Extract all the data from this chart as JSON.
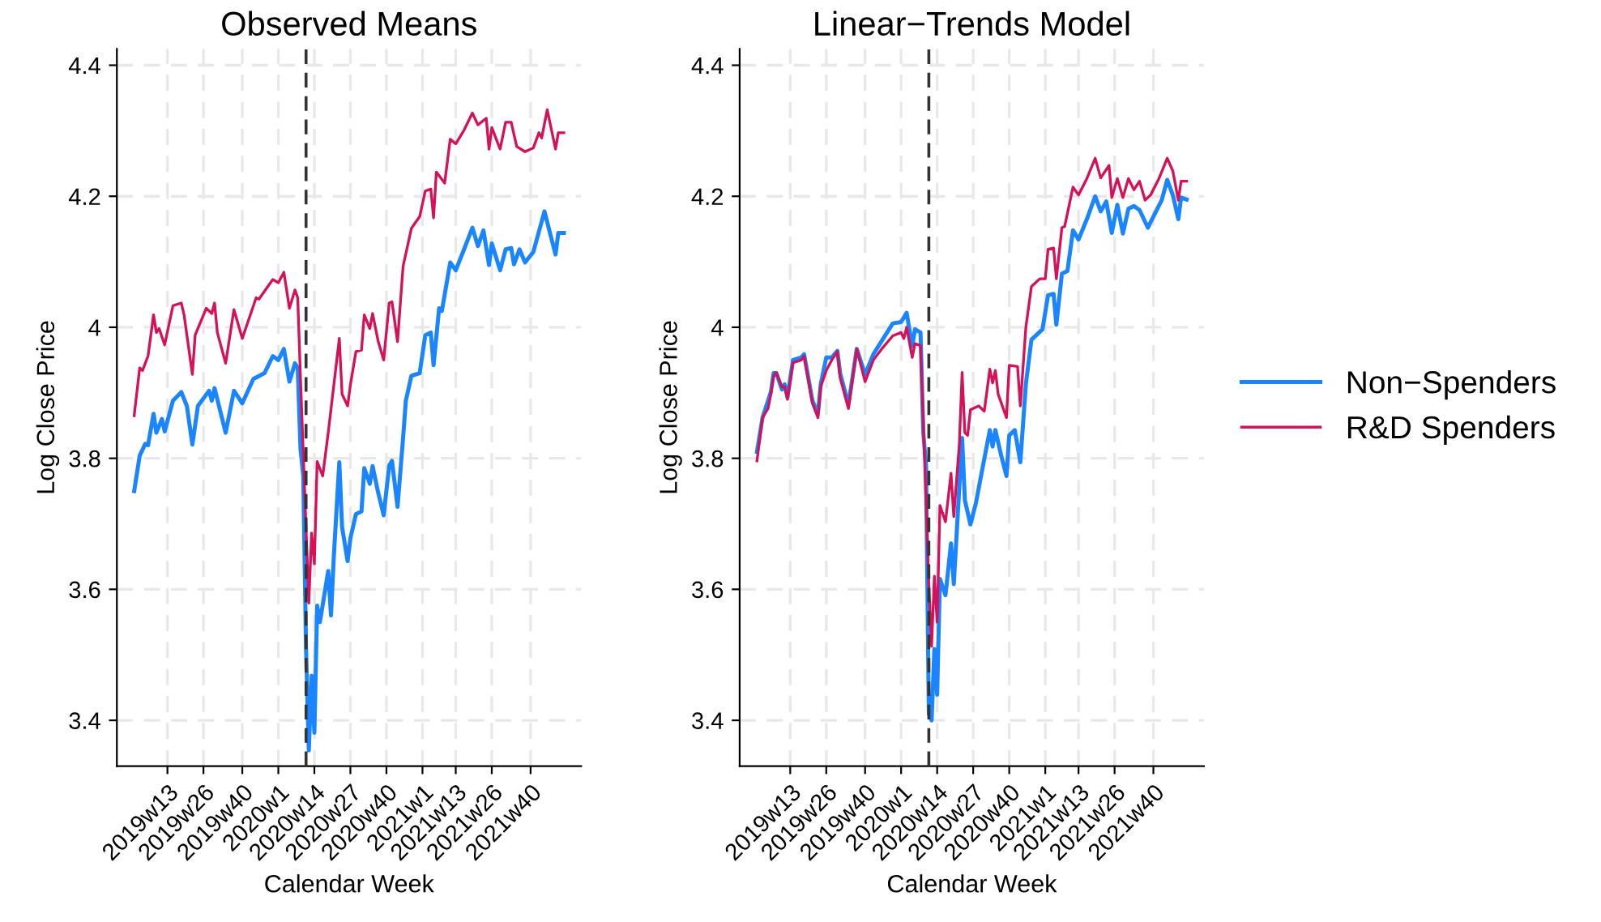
{
  "chart_data": [
    {
      "type": "line",
      "title": "Observed Means",
      "xlabel": "Calendar Week",
      "ylabel": "Log Close Price",
      "categories": [
        null,
        null,
        null,
        null,
        null,
        null,
        null,
        null,
        null,
        null,
        null,
        null,
        "2019w13",
        null,
        null,
        null,
        null,
        null,
        null,
        null,
        null,
        null,
        null,
        null,
        null,
        "2019w26",
        null,
        null,
        null,
        null,
        null,
        null,
        null,
        null,
        null,
        null,
        null,
        null,
        null,
        "2019w40",
        null,
        null,
        null,
        null,
        null,
        null,
        null,
        null,
        null,
        null,
        null,
        null,
        "2020w1",
        null,
        null,
        null,
        null,
        null,
        null,
        null,
        null,
        null,
        null,
        null,
        null,
        "2020w14",
        null,
        null,
        null,
        null,
        null,
        null,
        null,
        null,
        null,
        null,
        null,
        null,
        "2020w27",
        null,
        null,
        null,
        null,
        null,
        null,
        null,
        null,
        null,
        null,
        null,
        null,
        "2020w40",
        null,
        null,
        null,
        null,
        null,
        null,
        null,
        null,
        null,
        null,
        null,
        null,
        "2021w1",
        null,
        null,
        null,
        null,
        null,
        null,
        null,
        null,
        null,
        null,
        null,
        "2021w13",
        null,
        null,
        null,
        null,
        null,
        null,
        null,
        null,
        null,
        null,
        null,
        null,
        "2021w26",
        null,
        null,
        null,
        null,
        null,
        null,
        null,
        null,
        null,
        null,
        null,
        null,
        null,
        "2021w40",
        null,
        null,
        null,
        null,
        null,
        null,
        null,
        null,
        null,
        null,
        null,
        null
      ],
      "ylim": [
        3.33,
        4.425
      ],
      "yticks": [
        3.4,
        3.6,
        3.8,
        4,
        4.2,
        4.4
      ],
      "grid": true,
      "line_style": "solid",
      "series": [
        {
          "color": "#1a85ff",
          "values": [
            3.75,
            null,
            3.804,
            null,
            3.822,
            3.82,
            null,
            3.868,
            3.839,
            null,
            3.86,
            3.841,
            null,
            null,
            3.888,
            null,
            null,
            3.901,
            null,
            3.88,
            null,
            3.821,
            null,
            3.88,
            null,
            null,
            null,
            3.903,
            3.888,
            3.907,
            null,
            null,
            null,
            3.839,
            null,
            null,
            3.903,
            null,
            null,
            3.884,
            null,
            null,
            null,
            3.921,
            null,
            null,
            null,
            3.93,
            null,
            null,
            3.956,
            null,
            3.95,
            null,
            3.967,
            null,
            3.917,
            null,
            3.945,
            3.938,
            3.814,
            3.773,
            3.509,
            3.354,
            3.468,
            3.381,
            3.575,
            3.55,
            null,
            null,
            3.628,
            3.56,
            3.649,
            null,
            3.794,
            3.695,
            null,
            3.643,
            3.678,
            null,
            3.715,
            null,
            3.719,
            3.785,
            null,
            3.761,
            3.788,
            null,
            3.748,
            null,
            3.713,
            null,
            3.789,
            3.796,
            null,
            3.726,
            null,
            3.831,
            3.888,
            null,
            3.926,
            null,
            null,
            3.93,
            null,
            3.988,
            null,
            3.992,
            3.942,
            null,
            4.029,
            4.025,
            null,
            null,
            4.099,
            null,
            4.087,
            null,
            null,
            4.119,
            null,
            null,
            4.152,
            null,
            4.124,
            null,
            4.148,
            null,
            4.095,
            4.128,
            null,
            null,
            4.087,
            null,
            4.119,
            null,
            4.121,
            4.096,
            null,
            4.119,
            null,
            4.099,
            null,
            null,
            4.115,
            null,
            4.146,
            null,
            4.177,
            null,
            4.144,
            null,
            4.111,
            4.144,
            null,
            4.144
          ]
        },
        {
          "color": "#d41159",
          "values": [
            3.865,
            null,
            3.938,
            3.934,
            null,
            3.956,
            null,
            4.019,
            3.992,
            3.998,
            null,
            3.973,
            null,
            null,
            4.033,
            null,
            null,
            4.037,
            4.019,
            null,
            null,
            3.928,
            3.988,
            null,
            null,
            null,
            4.029,
            null,
            4.021,
            4.037,
            3.992,
            null,
            null,
            3.945,
            null,
            null,
            4.027,
            null,
            null,
            3.983,
            null,
            null,
            null,
            null,
            4.045,
            4.043,
            null,
            null,
            null,
            null,
            4.073,
            null,
            4.068,
            null,
            4.084,
            null,
            4.029,
            null,
            4.057,
            4.045,
            3.921,
            null,
            null,
            3.579,
            3.686,
            3.639,
            3.795,
            null,
            3.773,
            null,
            3.839,
            null,
            null,
            null,
            3.983,
            3.898,
            null,
            3.88,
            3.912,
            null,
            3.963,
            null,
            3.965,
            4.019,
            null,
            3.998,
            4.021,
            null,
            3.979,
            null,
            3.95,
            null,
            4.037,
            4.039,
            null,
            3.978,
            null,
            4.093,
            null,
            null,
            4.151,
            null,
            null,
            4.169,
            null,
            4.208,
            null,
            4.211,
            4.167,
            4.237,
            null,
            null,
            4.22,
            null,
            4.287,
            null,
            4.28,
            null,
            null,
            4.301,
            null,
            null,
            4.327,
            null,
            4.309,
            null,
            null,
            4.319,
            4.272,
            4.305,
            null,
            null,
            4.272,
            null,
            4.313,
            null,
            4.313,
            null,
            4.276,
            null,
            null,
            4.268,
            null,
            null,
            4.274,
            null,
            4.297,
            4.289,
            null,
            4.332,
            null,
            null,
            4.272,
            4.297,
            null,
            4.297
          ]
        }
      ]
    },
    {
      "type": "line",
      "title": "Linear−Trends Model",
      "xlabel": "Calendar Week",
      "ylabel": "Log Close Price",
      "categories": [
        null,
        null,
        null,
        null,
        null,
        null,
        null,
        null,
        null,
        null,
        null,
        null,
        "2019w13",
        null,
        null,
        null,
        null,
        null,
        null,
        null,
        null,
        null,
        null,
        null,
        null,
        "2019w26",
        null,
        null,
        null,
        null,
        null,
        null,
        null,
        null,
        null,
        null,
        null,
        null,
        null,
        "2019w40",
        null,
        null,
        null,
        null,
        null,
        null,
        null,
        null,
        null,
        null,
        null,
        null,
        "2020w1",
        null,
        null,
        null,
        null,
        null,
        null,
        null,
        null,
        null,
        null,
        null,
        null,
        "2020w14",
        null,
        null,
        null,
        null,
        null,
        null,
        null,
        null,
        null,
        null,
        null,
        null,
        "2020w27",
        null,
        null,
        null,
        null,
        null,
        null,
        null,
        null,
        null,
        null,
        null,
        null,
        "2020w40",
        null,
        null,
        null,
        null,
        null,
        null,
        null,
        null,
        null,
        null,
        null,
        null,
        "2021w1",
        null,
        null,
        null,
        null,
        null,
        null,
        null,
        null,
        null,
        null,
        null,
        "2021w13",
        null,
        null,
        null,
        null,
        null,
        null,
        null,
        null,
        null,
        null,
        null,
        null,
        "2021w26",
        null,
        null,
        null,
        null,
        null,
        null,
        null,
        null,
        null,
        null,
        null,
        null,
        null,
        "2021w40",
        null,
        null,
        null,
        null,
        null,
        null,
        null,
        null,
        null,
        null,
        null,
        null
      ],
      "ylim": [
        3.33,
        4.425
      ],
      "yticks": [
        3.4,
        3.6,
        3.8,
        4,
        4.2,
        4.4
      ],
      "grid": true,
      "legend": "right",
      "line_style": "solid",
      "series": [
        {
          "name": "Non−Spenders",
          "color": "#1a85ff",
          "values": [
            3.81,
            null,
            3.862,
            null,
            null,
            3.901,
            3.93,
            3.93,
            null,
            3.905,
            3.913,
            3.893,
            null,
            3.95,
            null,
            null,
            3.954,
            3.959,
            null,
            null,
            3.888,
            null,
            3.868,
            3.913,
            null,
            3.954,
            null,
            3.954,
            null,
            3.964,
            3.93,
            null,
            null,
            3.882,
            null,
            null,
            3.967,
            null,
            null,
            3.928,
            null,
            null,
            3.959,
            null,
            null,
            3.979,
            null,
            null,
            null,
            4.006,
            null,
            null,
            4.008,
            null,
            4.022,
            null,
            3.971,
            3.997,
            null,
            3.992,
            3.839,
            3.789,
            3.41,
            3.4,
            3.509,
            3.439,
            3.616,
            null,
            3.591,
            null,
            3.67,
            3.608,
            null,
            null,
            3.831,
            3.736,
            null,
            3.699,
            null,
            3.732,
            null,
            3.777,
            null,
            null,
            3.843,
            3.818,
            3.843,
            null,
            3.806,
            null,
            3.773,
            3.835,
            null,
            3.843,
            null,
            3.794,
            null,
            3.913,
            null,
            3.981,
            null,
            null,
            null,
            3.997,
            null,
            4.049,
            null,
            4.051,
            4.004,
            null,
            4.082,
            null,
            4.086,
            null,
            4.148,
            null,
            4.134,
            null,
            null,
            4.165,
            null,
            null,
            4.2,
            null,
            4.177,
            null,
            4.192,
            null,
            4.144,
            null,
            4.187,
            null,
            4.143,
            null,
            4.181,
            null,
            4.185,
            null,
            4.179,
            null,
            null,
            4.152,
            null,
            4.169,
            null,
            null,
            4.194,
            null,
            4.225,
            null,
            4.202,
            null,
            4.165,
            4.198,
            null,
            4.195
          ]
        },
        {
          "name": "R&D Spenders",
          "color": "#d41159",
          "values": [
            3.796,
            null,
            3.862,
            null,
            3.876,
            3.898,
            3.926,
            3.931,
            null,
            3.909,
            3.909,
            3.89,
            null,
            3.946,
            null,
            null,
            3.95,
            3.956,
            null,
            null,
            3.884,
            null,
            3.862,
            3.909,
            null,
            3.934,
            null,
            3.95,
            null,
            3.963,
            3.923,
            null,
            null,
            3.876,
            null,
            null,
            3.967,
            null,
            null,
            3.917,
            null,
            null,
            3.95,
            null,
            null,
            3.967,
            null,
            null,
            null,
            3.987,
            null,
            null,
            3.992,
            3.983,
            4.0,
            null,
            3.954,
            3.975,
            null,
            3.972,
            3.855,
            3.728,
            3.608,
            3.513,
            3.62,
            3.55,
            3.728,
            null,
            3.703,
            null,
            3.777,
            3.711,
            null,
            3.822,
            3.931,
            3.839,
            3.835,
            3.874,
            null,
            null,
            3.88,
            null,
            3.872,
            null,
            3.936,
            3.915,
            3.934,
            3.898,
            null,
            null,
            3.862,
            3.942,
            null,
            null,
            3.94,
            3.88,
            null,
            4.0,
            null,
            4.062,
            null,
            null,
            4.074,
            null,
            4.074,
            4.119,
            null,
            4.121,
            4.074,
            null,
            4.152,
            4.154,
            null,
            null,
            4.214,
            null,
            4.202,
            null,
            null,
            4.227,
            null,
            null,
            4.258,
            null,
            4.228,
            null,
            null,
            4.247,
            4.198,
            null,
            4.227,
            null,
            4.198,
            null,
            4.227,
            null,
            4.21,
            null,
            4.223,
            null,
            4.194,
            null,
            4.202,
            null,
            null,
            4.227,
            null,
            null,
            4.258,
            null,
            4.239,
            null,
            4.194,
            4.223,
            null,
            4.223
          ]
        }
      ]
    }
  ]
}
